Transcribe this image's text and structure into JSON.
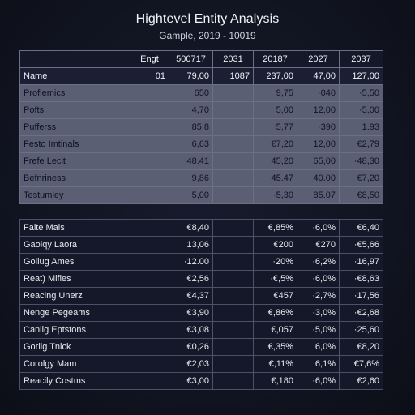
{
  "header": {
    "title": "Hightevel Entity Analysis",
    "subtitle": "Gample, 2019 - 10019"
  },
  "top_table": {
    "header_row_1": [
      "",
      "Engt",
      "500717",
      "2031",
      "20187",
      "2027",
      "2037"
    ],
    "header_row_2": [
      "Name",
      "01",
      "79,00",
      "1087",
      "237,00",
      "47,00",
      "127,00"
    ],
    "rows": [
      [
        "Proflemics",
        "",
        "650",
        "",
        "9,75",
        "·040",
        "·5,50"
      ],
      [
        "Pofts",
        "",
        "4,70",
        "",
        "5,00",
        "12,00",
        "·5,00"
      ],
      [
        "Pufferss",
        "",
        "85.8",
        "",
        "5,77",
        "·390",
        "1.93"
      ],
      [
        "Festo Imtinals",
        "",
        "6,63",
        "",
        "€7,20",
        "12,00",
        "€2,79"
      ],
      [
        "Frefe Lecit",
        "",
        "48.41",
        "",
        "45,20",
        "65,00",
        "·48,30"
      ],
      [
        "Befnriness",
        "",
        "·9,86",
        "",
        "45.47",
        "40.00",
        "€7,20"
      ],
      [
        "Testumley",
        "",
        "·5,00",
        "",
        "·5,30",
        "85.07",
        "€8,50"
      ]
    ]
  },
  "bottom_table": {
    "rows": [
      [
        "Falte Mals",
        "",
        "€8,40",
        "",
        "€,85%",
        "·6,0%",
        "€6,40"
      ],
      [
        "Gaoiqy Laora",
        "",
        "13,06",
        "",
        "€200",
        "€270",
        "·€5,66"
      ],
      [
        "Goliug Ames",
        "",
        "·12.00",
        "",
        "·20%",
        "·6,2%",
        "·16,97"
      ],
      [
        "Reat) Mifies",
        "",
        "€2,56",
        "",
        "·€,5%",
        "·6,0%",
        "·€8,63"
      ],
      [
        "Reacing Unerz",
        "",
        "€4,37",
        "",
        "€457",
        "·2,7%",
        "·17,56"
      ],
      [
        "Nenge Pegeams",
        "",
        "€3,90",
        "",
        "€,86%",
        "·3,0%",
        "·€2,68"
      ],
      [
        "Canlig Eptstons",
        "",
        "€3,08",
        "",
        "€,057",
        "·5,0%",
        "·25,60"
      ],
      [
        "Gorlig Tnick",
        "",
        "€0,26",
        "",
        "€,35%",
        "6,0%",
        "€8,20"
      ],
      [
        "Corolgy Mam",
        "",
        "€2,03",
        "",
        "€,11%",
        "6,1%",
        "€7,6%"
      ],
      [
        "Reacily Costms",
        "",
        "€3,00",
        "",
        "€,180",
        "·6,0%",
        "€2,60"
      ]
    ]
  },
  "colors": {
    "background": "#111421",
    "top_body_fill": "#5a5f74",
    "header_fill": "#1b1f34",
    "bottom_fill": "#141828"
  }
}
